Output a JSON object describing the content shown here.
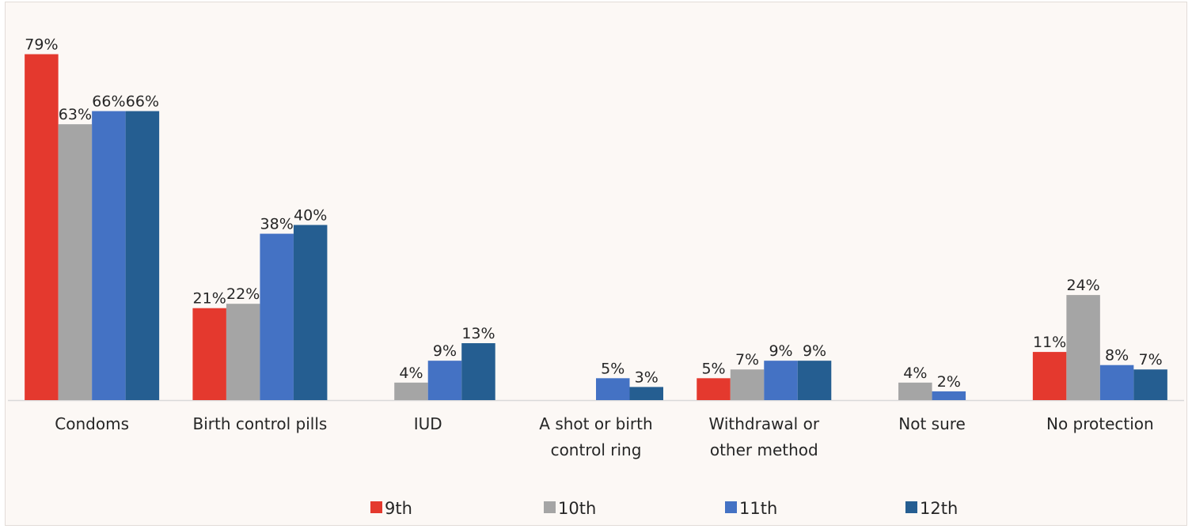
{
  "chart_data": {
    "type": "bar",
    "categories": [
      [
        "Condoms"
      ],
      [
        "Birth control pills"
      ],
      [
        "IUD"
      ],
      [
        "A shot or birth",
        "control ring"
      ],
      [
        "Withdrawal or",
        "other method"
      ],
      [
        "Not sure"
      ],
      [
        "No protection"
      ]
    ],
    "series": [
      {
        "name": "9th",
        "color": "#e4392e",
        "values": [
          79,
          21,
          null,
          null,
          5,
          null,
          11
        ]
      },
      {
        "name": "10th",
        "color": "#a5a5a5",
        "values": [
          63,
          22,
          4,
          null,
          7,
          4,
          24
        ]
      },
      {
        "name": "11th",
        "color": "#4472c4",
        "values": [
          66,
          38,
          9,
          5,
          9,
          2,
          8
        ]
      },
      {
        "name": "12th",
        "color": "#255e91",
        "values": [
          66,
          40,
          13,
          3,
          9,
          null,
          7
        ]
      }
    ],
    "value_suffix": "%",
    "ylim": [
      0,
      80
    ],
    "grid": false,
    "legend_position": "bottom"
  }
}
